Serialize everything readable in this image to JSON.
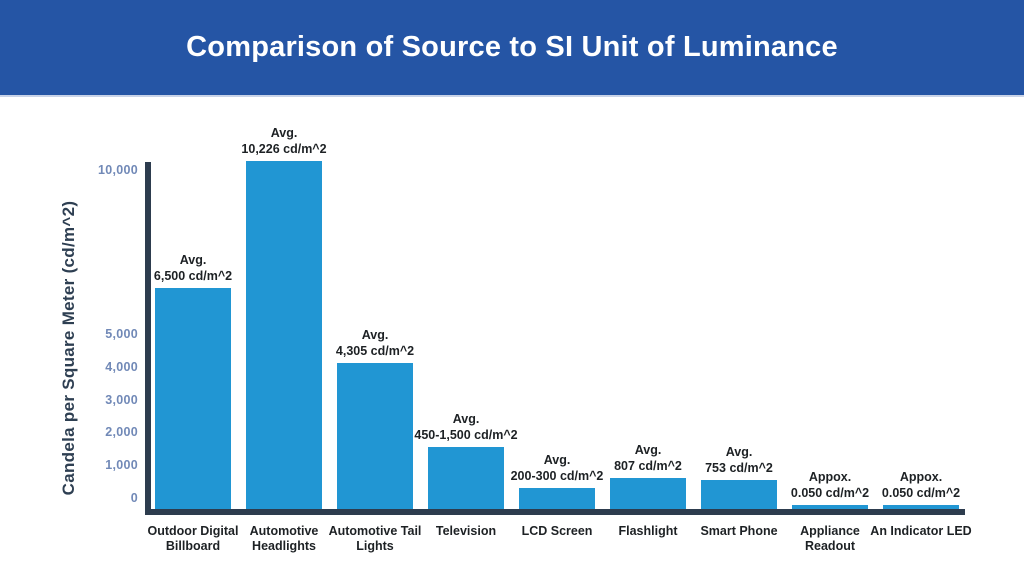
{
  "header": {
    "title": "Comparison of Source to SI Unit of Luminance"
  },
  "colors": {
    "background": "#ffffff",
    "header_bg": "#2555a5",
    "title_text": "#ffffff",
    "header_separator": "#c9d3e8",
    "bar_fill": "#2196d3",
    "axis": "#2d3c4e",
    "tick_label": "#7189b7",
    "annotation_text": "#1d2124",
    "category_label": "#1d2124",
    "y_axis_title": "#2e3f52"
  },
  "chart_data": {
    "type": "bar",
    "title": "Comparison of Source to SI Unit of Luminance",
    "ylabel": "Candela per Square Meter (cd/m^2)",
    "xlabel": "",
    "ylim": [
      0,
      10500
    ],
    "grid": false,
    "legend": null,
    "yticks": [
      {
        "value": 0,
        "label": "0"
      },
      {
        "value": 1000,
        "label": "1,000"
      },
      {
        "value": 2000,
        "label": "2,000"
      },
      {
        "value": 3000,
        "label": "3,000"
      },
      {
        "value": 4000,
        "label": "4,000"
      },
      {
        "value": 5000,
        "label": "5,000"
      },
      {
        "value": 10000,
        "label": "10,000"
      }
    ],
    "categories": [
      "Outdoor Digital Billboard",
      "Automotive Headlights",
      "Automotive Tail Lights",
      "Television",
      "LCD Screen",
      "Flashlight",
      "Smart Phone",
      "Appliance Readout",
      "An Indicator LED"
    ],
    "bars": [
      {
        "category": "Outdoor Digital Billboard",
        "annotation": [
          "Avg.",
          "6,500 cd/m^2"
        ],
        "value": 6500,
        "drawn_value": 6500
      },
      {
        "category": "Automotive Headlights",
        "annotation": [
          "Avg.",
          "10,226 cd/m^2"
        ],
        "value": 10226,
        "drawn_value": 10226
      },
      {
        "category": "Automotive Tail Lights",
        "annotation": [
          "Avg.",
          "4,305 cd/m^2"
        ],
        "value": 4305,
        "drawn_value": 4305
      },
      {
        "category": "Television",
        "annotation": [
          "Avg.",
          "450-1,500 cd/m^2"
        ],
        "value": [
          450,
          1500
        ],
        "drawn_value": 1830
      },
      {
        "category": "LCD Screen",
        "annotation": [
          "Avg.",
          "200-300 cd/m^2"
        ],
        "value": [
          200,
          300
        ],
        "drawn_value": 610
      },
      {
        "category": "Flashlight",
        "annotation": [
          "Avg.",
          "807 cd/m^2"
        ],
        "value": 807,
        "drawn_value": 900
      },
      {
        "category": "Smart Phone",
        "annotation": [
          "Avg.",
          "753 cd/m^2"
        ],
        "value": 753,
        "drawn_value": 850
      },
      {
        "category": "Appliance Readout",
        "annotation": [
          "Appox.",
          "0.050 cd/m^2"
        ],
        "value": 0.05,
        "drawn_value": 0.05
      },
      {
        "category": "An Indicator LED",
        "annotation": [
          "Appox.",
          "0.050 cd/m^2"
        ],
        "value": 0.05,
        "drawn_value": 0.05
      }
    ]
  }
}
